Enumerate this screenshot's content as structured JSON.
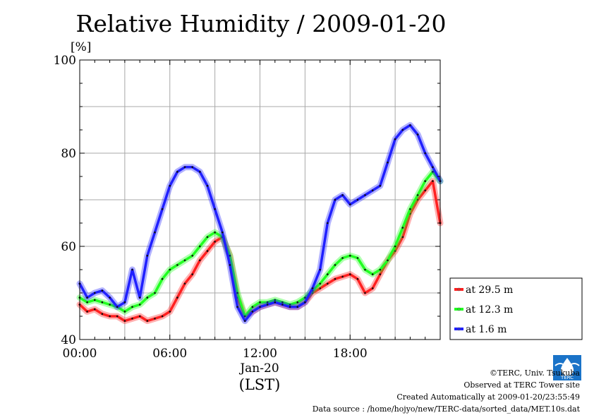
{
  "chart_data": {
    "type": "line",
    "title": "Relative Humidity / 2009-01-20",
    "ylabel": "[%]",
    "xlabel": "(LST)",
    "x_date_label": "Jan-20",
    "ylim": [
      40,
      100
    ],
    "y_ticks": [
      "100",
      "80",
      "60",
      "40"
    ],
    "x_ticks": [
      "00:00",
      "06:00",
      "12:00",
      "18:00"
    ],
    "xlim_hours": [
      0,
      24
    ],
    "grid": true,
    "legend_position": "right",
    "x_hours": [
      0,
      0.5,
      1,
      1.5,
      2,
      2.5,
      3,
      3.5,
      4,
      4.5,
      5,
      5.5,
      6,
      6.5,
      7,
      7.5,
      8,
      8.5,
      9,
      9.5,
      10,
      10.5,
      11,
      11.5,
      12,
      12.5,
      13,
      13.5,
      14,
      14.5,
      15,
      15.5,
      16,
      16.5,
      17,
      17.5,
      18,
      18.5,
      19,
      19.5,
      20,
      20.5,
      21,
      21.5,
      22,
      22.5,
      23,
      23.5,
      24
    ],
    "series": [
      {
        "name": "at 29.5 m",
        "color": "#ff2020",
        "values": [
          47.5,
          46,
          46.5,
          45.5,
          45,
          45,
          44,
          44.5,
          45,
          44,
          44.5,
          45,
          46,
          49,
          52,
          54,
          57,
          59,
          61,
          62,
          58,
          49,
          45,
          46,
          47,
          47.5,
          48,
          47.5,
          47,
          47,
          48,
          50,
          51,
          52,
          53,
          53.5,
          54,
          53,
          50,
          51,
          54,
          57,
          59,
          62,
          67,
          70,
          72,
          74,
          65
        ]
      },
      {
        "name": "at 12.3 m",
        "color": "#20ff20",
        "values": [
          49,
          48,
          48.5,
          48,
          47.5,
          47,
          46,
          47,
          47.5,
          49,
          50,
          53,
          55,
          56,
          57,
          58,
          60,
          62,
          63,
          62,
          58,
          50,
          45,
          47,
          48,
          48,
          48.5,
          48,
          47.5,
          48,
          49,
          50.5,
          52,
          54,
          56,
          57.5,
          58,
          57.5,
          55,
          54,
          55,
          57,
          60,
          64,
          68,
          71,
          74,
          76,
          74
        ]
      },
      {
        "name": "at 1.6 m",
        "color": "#2020ff",
        "values": [
          52,
          49,
          50,
          50.5,
          49,
          47,
          48,
          55,
          49,
          58,
          63,
          68,
          73,
          76,
          77,
          77,
          76,
          73,
          68,
          63,
          56,
          47,
          44,
          46,
          47,
          47.5,
          48,
          47.5,
          47,
          47,
          48,
          51,
          55,
          65,
          70,
          71,
          69,
          70,
          71,
          72,
          73,
          78,
          83,
          85,
          86,
          84,
          80,
          77,
          74
        ]
      }
    ]
  },
  "footer": {
    "copyright": "©TERC, Univ. Tsukuba",
    "observed": "Observed at TERC Tower site",
    "created": "Created Automatically at 2009-01-20/23:55:49",
    "source": "Data source : /home/hojyo/new/TERC-data/sorted_data/MET.10s.dat",
    "logo_text": "TERC"
  }
}
